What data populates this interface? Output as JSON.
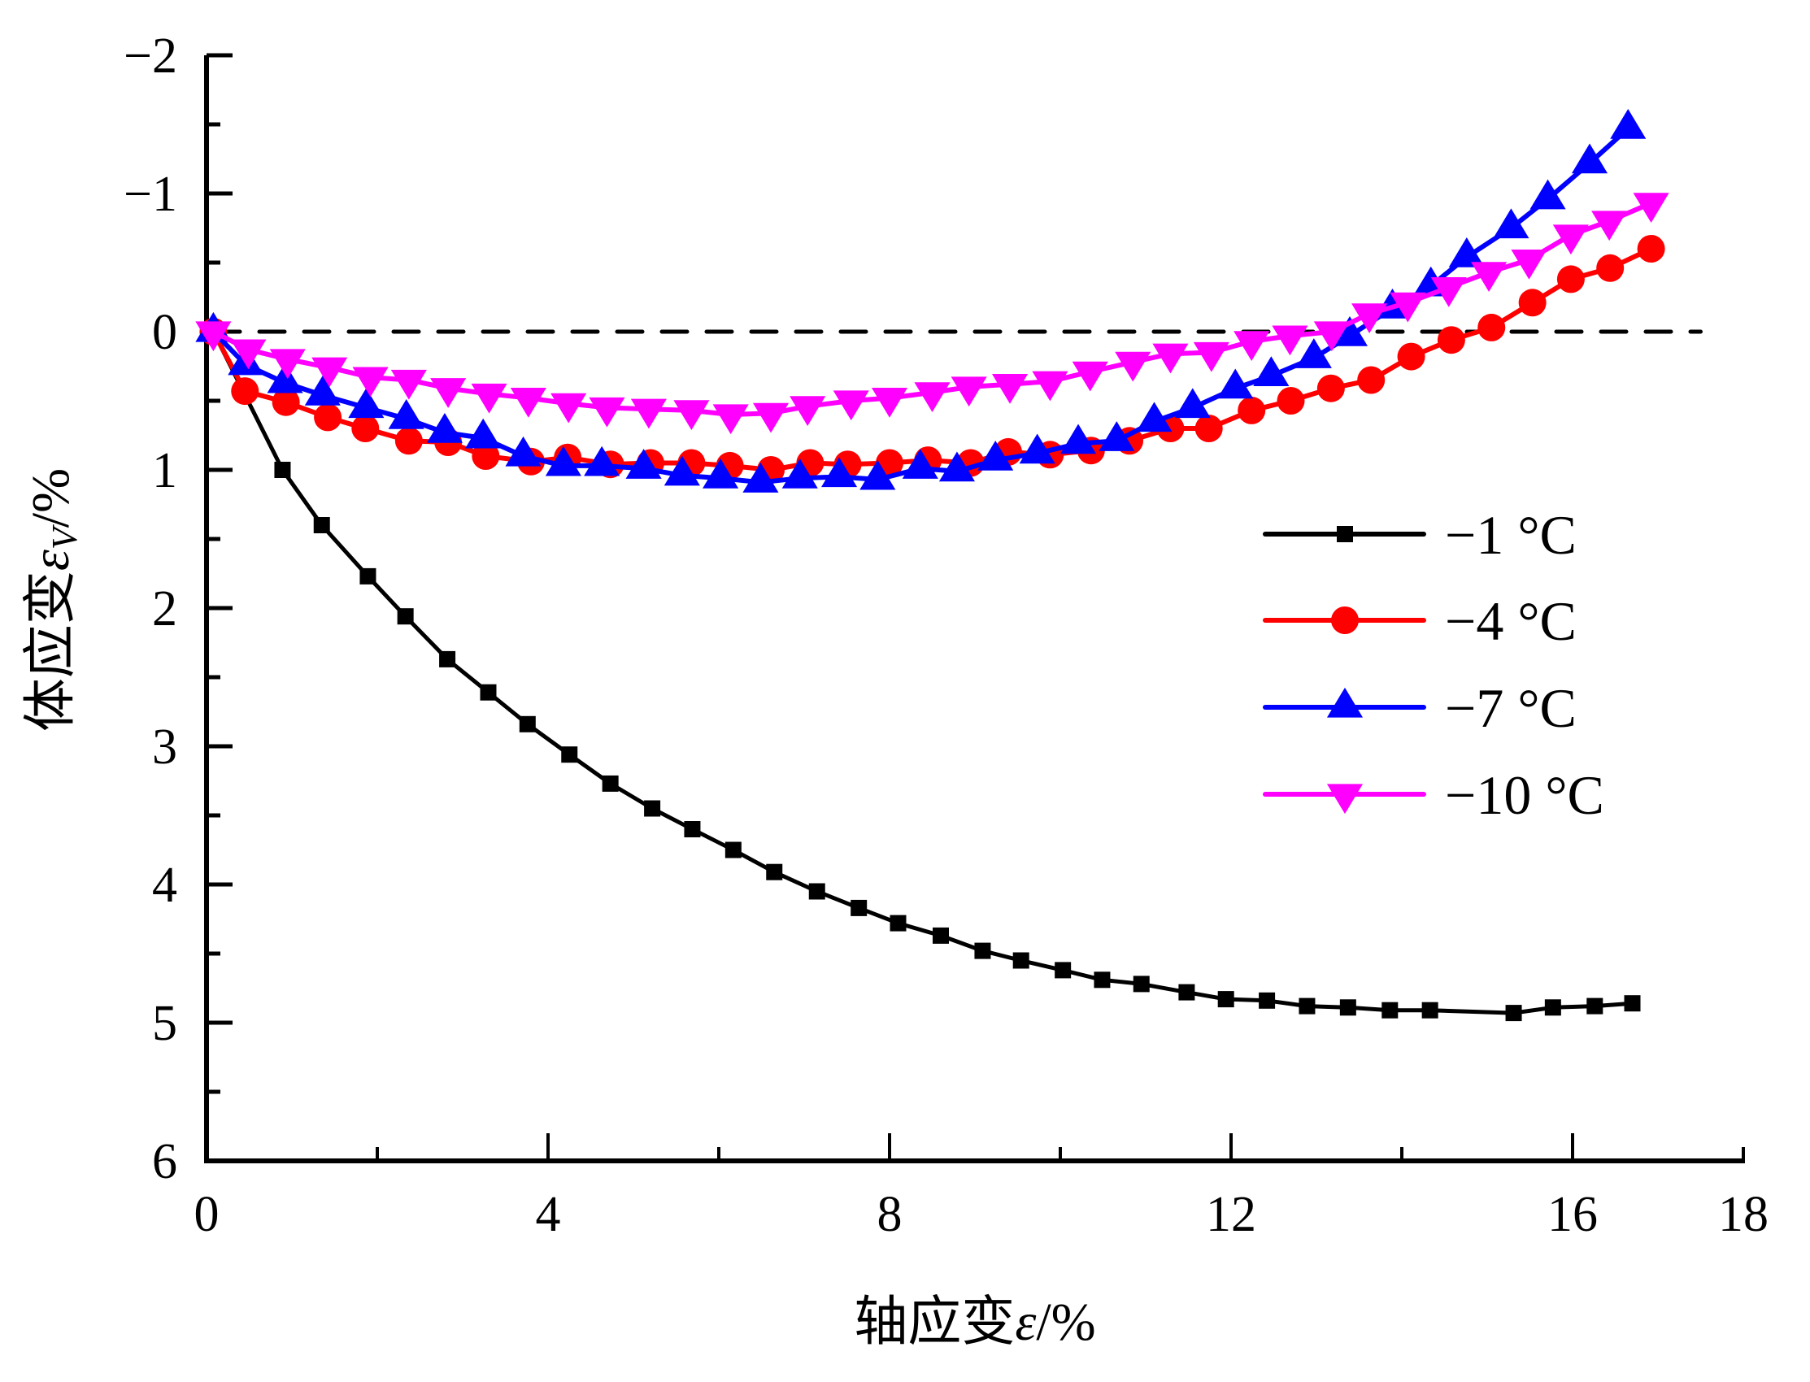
{
  "chart_data": {
    "type": "line",
    "title": "",
    "xlabel": "轴应变ε/%",
    "xlabel_parts": {
      "text": "轴应变",
      "symbol": "ε",
      "unit": "/%"
    },
    "ylabel": "体应变εV/%",
    "ylabel_parts": {
      "text": "体应变",
      "symbol": "ε",
      "subscript": "V",
      "unit": "/%"
    },
    "xlim": [
      0,
      18
    ],
    "ylim": [
      6,
      -2
    ],
    "y_inverted": true,
    "x_ticks": [
      0,
      4,
      8,
      12,
      16,
      18
    ],
    "x_tick_labels": [
      "0",
      "4",
      "8",
      "12",
      "16",
      "18"
    ],
    "x_minor_ticks": [
      2,
      6,
      10,
      14
    ],
    "y_ticks": [
      -2,
      -1,
      0,
      1,
      2,
      3,
      4,
      5,
      6
    ],
    "y_tick_labels": [
      "−2",
      "−1",
      "0",
      "1",
      "2",
      "3",
      "4",
      "5",
      "6"
    ],
    "y_minor_ticks": [
      -1.5,
      -0.5,
      0.5,
      1.5,
      2.5,
      3.5,
      4.5,
      5.5
    ],
    "grid": false,
    "reference_line": {
      "y": 0,
      "x_range": [
        0,
        17.5
      ],
      "style": "dashed",
      "color": "#000000"
    },
    "legend_position": "center-right",
    "series": [
      {
        "name": "−1 °C",
        "color": "#000000",
        "marker": "square",
        "x": [
          0.08,
          0.89,
          1.35,
          1.89,
          2.33,
          2.82,
          3.3,
          3.76,
          4.25,
          4.73,
          5.22,
          5.69,
          6.17,
          6.65,
          7.15,
          7.64,
          8.1,
          8.6,
          9.09,
          9.54,
          10.03,
          10.49,
          10.95,
          11.48,
          11.94,
          12.42,
          12.89,
          13.37,
          13.86,
          14.33,
          15.31,
          15.77,
          16.26,
          16.7
        ],
        "y": [
          0.0,
          1.0,
          1.4,
          1.77,
          2.06,
          2.37,
          2.61,
          2.84,
          3.06,
          3.27,
          3.45,
          3.6,
          3.75,
          3.91,
          4.05,
          4.17,
          4.28,
          4.37,
          4.48,
          4.55,
          4.62,
          4.69,
          4.72,
          4.78,
          4.83,
          4.84,
          4.88,
          4.89,
          4.91,
          4.91,
          4.93,
          4.89,
          4.88,
          4.86
        ]
      },
      {
        "name": "−4 °C",
        "color": "#ff0000",
        "marker": "circle",
        "x": [
          0.08,
          0.45,
          0.93,
          1.42,
          1.86,
          2.37,
          2.83,
          3.27,
          3.8,
          4.23,
          4.73,
          5.2,
          5.68,
          6.13,
          6.61,
          7.07,
          7.51,
          8.0,
          8.45,
          8.95,
          9.39,
          9.88,
          10.36,
          10.81,
          11.29,
          11.74,
          12.24,
          12.7,
          13.17,
          13.64,
          14.11,
          14.58,
          15.05,
          15.53,
          15.98,
          16.44,
          16.92
        ],
        "y": [
          0.0,
          0.43,
          0.51,
          0.62,
          0.7,
          0.79,
          0.8,
          0.9,
          0.94,
          0.91,
          0.96,
          0.95,
          0.95,
          0.97,
          1.0,
          0.95,
          0.96,
          0.95,
          0.93,
          0.95,
          0.87,
          0.89,
          0.86,
          0.79,
          0.7,
          0.7,
          0.57,
          0.5,
          0.41,
          0.35,
          0.18,
          0.06,
          -0.03,
          -0.21,
          -0.38,
          -0.46,
          -0.6
        ]
      },
      {
        "name": "−7 °C",
        "color": "#0000ff",
        "marker": "triangle-up",
        "x": [
          0.08,
          0.46,
          0.92,
          1.36,
          1.87,
          2.34,
          2.79,
          3.24,
          3.71,
          4.18,
          4.63,
          5.12,
          5.57,
          6.02,
          6.49,
          6.95,
          7.41,
          7.86,
          8.36,
          8.79,
          9.24,
          9.73,
          10.21,
          10.66,
          11.1,
          11.55,
          12.05,
          12.47,
          12.97,
          13.39,
          13.89,
          14.34,
          14.76,
          15.28,
          15.71,
          16.2,
          16.65
        ],
        "y": [
          0.0,
          0.24,
          0.37,
          0.46,
          0.55,
          0.63,
          0.73,
          0.77,
          0.9,
          0.97,
          0.97,
          0.99,
          1.04,
          1.06,
          1.09,
          1.06,
          1.05,
          1.07,
          0.99,
          1.01,
          0.93,
          0.88,
          0.81,
          0.79,
          0.65,
          0.55,
          0.41,
          0.32,
          0.19,
          0.03,
          -0.17,
          -0.33,
          -0.54,
          -0.75,
          -0.96,
          -1.22,
          -1.47
        ]
      },
      {
        "name": "−10 °C",
        "color": "#ff00ff",
        "marker": "triangle-down",
        "x": [
          0.08,
          0.49,
          0.95,
          1.44,
          1.92,
          2.37,
          2.83,
          3.31,
          3.77,
          4.24,
          4.69,
          5.18,
          5.68,
          6.14,
          6.61,
          7.04,
          7.55,
          8.0,
          8.5,
          8.93,
          9.41,
          9.88,
          10.35,
          10.85,
          11.29,
          11.77,
          12.24,
          12.69,
          13.18,
          13.62,
          14.07,
          14.55,
          15.02,
          15.49,
          15.98,
          16.43,
          16.92
        ],
        "y": [
          0.0,
          0.13,
          0.2,
          0.26,
          0.33,
          0.35,
          0.41,
          0.45,
          0.48,
          0.52,
          0.55,
          0.56,
          0.57,
          0.6,
          0.59,
          0.54,
          0.5,
          0.48,
          0.44,
          0.4,
          0.38,
          0.36,
          0.29,
          0.22,
          0.16,
          0.15,
          0.07,
          0.03,
          0.0,
          -0.13,
          -0.21,
          -0.32,
          -0.43,
          -0.52,
          -0.7,
          -0.8,
          -0.93
        ]
      }
    ]
  }
}
